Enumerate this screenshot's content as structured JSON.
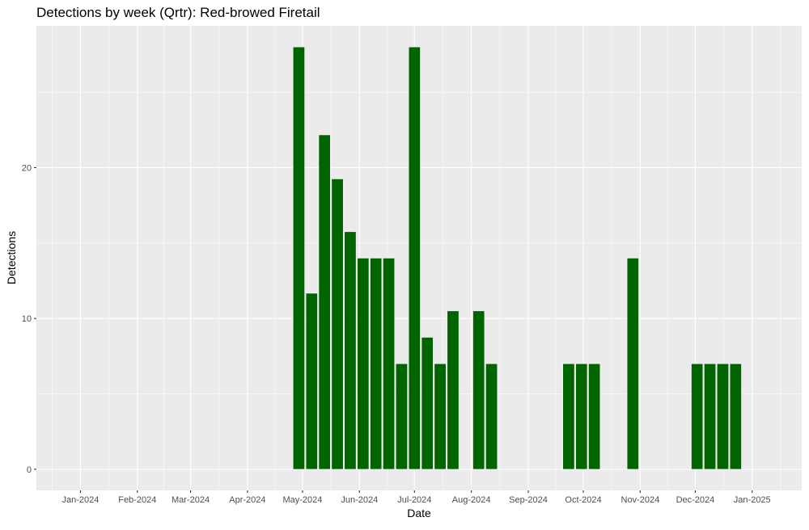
{
  "chart_data": {
    "type": "bar",
    "title": "Detections by week (Qrtr): Red-browed Firetail",
    "xlabel": "Date",
    "ylabel": "Detections",
    "ylim": [
      -1.4,
      29.4
    ],
    "y_ticks": [
      0,
      10,
      20
    ],
    "x_range": [
      "2023-12-08",
      "2025-01-28"
    ],
    "x_ticks": [
      {
        "date": "2024-01-01",
        "label": "Jan-2024"
      },
      {
        "date": "2024-02-01",
        "label": "Feb-2024"
      },
      {
        "date": "2024-03-01",
        "label": "Mar-2024"
      },
      {
        "date": "2024-04-01",
        "label": "Apr-2024"
      },
      {
        "date": "2024-05-01",
        "label": "May-2024"
      },
      {
        "date": "2024-06-01",
        "label": "Jun-2024"
      },
      {
        "date": "2024-07-01",
        "label": "Jul-2024"
      },
      {
        "date": "2024-08-01",
        "label": "Aug-2024"
      },
      {
        "date": "2024-09-01",
        "label": "Sep-2024"
      },
      {
        "date": "2024-10-01",
        "label": "Oct-2024"
      },
      {
        "date": "2024-11-01",
        "label": "Nov-2024"
      },
      {
        "date": "2024-12-01",
        "label": "Dec-2024"
      },
      {
        "date": "2025-01-01",
        "label": "Jan-2025"
      }
    ],
    "grid": true,
    "bar_color": "#006400",
    "panel_color": "#EBEBEB",
    "gridline_color": "#FFFFFF",
    "x": [
      "2024-04-29",
      "2024-05-06",
      "2024-05-13",
      "2024-05-20",
      "2024-05-27",
      "2024-06-03",
      "2024-06-10",
      "2024-06-17",
      "2024-06-24",
      "2024-07-01",
      "2024-07-08",
      "2024-07-15",
      "2024-07-22",
      "2024-08-05",
      "2024-08-12",
      "2024-09-23",
      "2024-09-30",
      "2024-10-07",
      "2024-10-28",
      "2024-12-02",
      "2024-12-09",
      "2024-12-16",
      "2024-12-23"
    ],
    "values": [
      28,
      11.67,
      22.17,
      19.25,
      15.75,
      14,
      14,
      14,
      7,
      28,
      8.75,
      7,
      10.5,
      10.5,
      7,
      7,
      7,
      7,
      14,
      7,
      7,
      7,
      7
    ]
  }
}
